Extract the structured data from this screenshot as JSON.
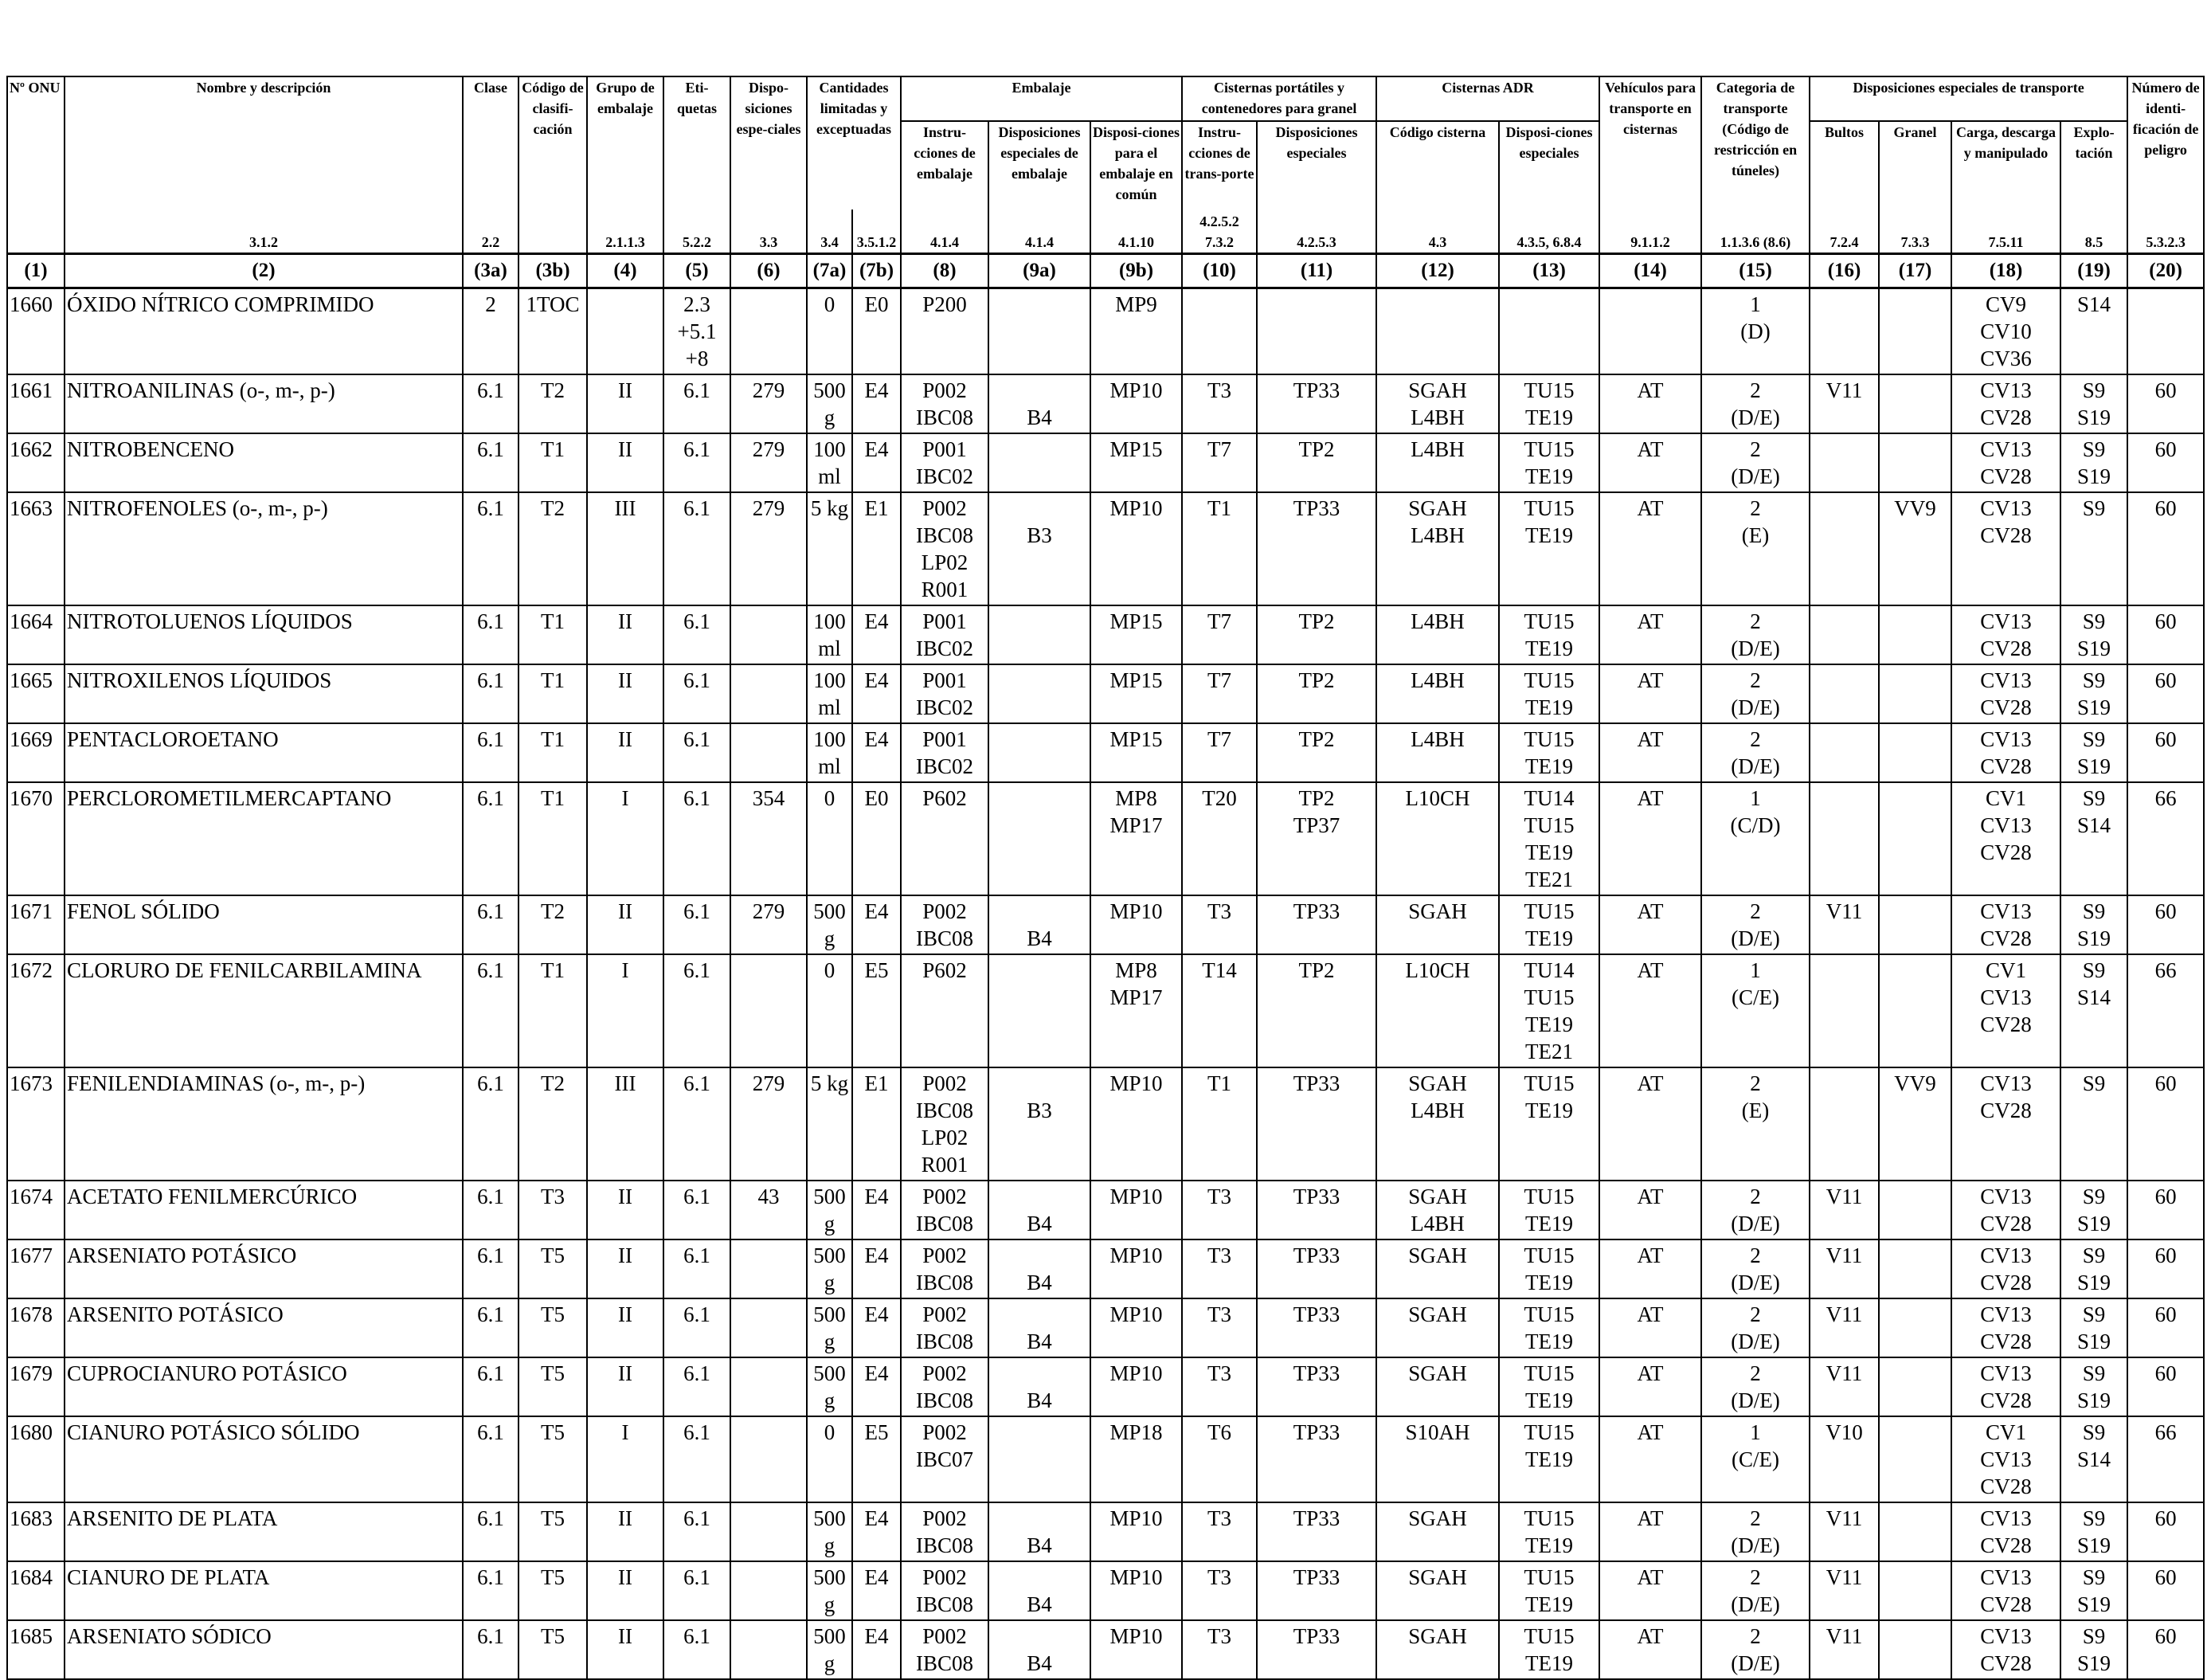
{
  "header": {
    "row1": {
      "onu": "Nº ONU",
      "name": "Nombre y descripción",
      "clase": "Clase",
      "codigo": "Código de clasifi-cación",
      "grupo": "Grupo de embalaje",
      "etiquetas": "Eti-quetas",
      "disposiciones": "Dispo-siciones espe-ciales",
      "cantidades": "Cantidades limitadas y exceptuadas",
      "embalaje": "Embalaje",
      "cisternas_portatiles": "Cisternas portátiles y contenedores para granel",
      "cisternas_adr": "Cisternas ADR",
      "vehiculos": "Vehículos para transporte en cisternas",
      "categoria": "Categoria de transporte (Código de restricción en túneles)",
      "disp_transporte": "Disposiciones especiales de transporte",
      "numero": "Número de identi-ficación de peligro"
    },
    "row2": {
      "emb_instr": "Instru-cciones de embalaje",
      "emb_disp": "Disposiciones especiales de embalaje",
      "emb_comun": "Disposi-ciones para el embalaje en común",
      "cp_instr": "Instru-cciones de trans-porte",
      "cp_disp": "Disposiciones especiales",
      "adr_codigo": "Código cisterna",
      "adr_disp": "Disposi-ciones especiales",
      "bultos": "Bultos",
      "granel": "Granel",
      "carga": "Carga, descarga y manipulado",
      "explotacion": "Explo-tación"
    },
    "refs": [
      "",
      "3.1.2",
      "2.2",
      "",
      "2.1.1.3",
      "5.2.2",
      "3.3",
      "3.4",
      "3.5.1.2",
      "4.1.4",
      "4.1.4",
      "4.1.10",
      "4.2.5.2 7.3.2",
      "4.2.5.3",
      "4.3",
      "4.3.5, 6.8.4",
      "9.1.1.2",
      "1.1.3.6 (8.6)",
      "7.2.4",
      "7.3.3",
      "7.5.11",
      "8.5",
      "5.3.2.3"
    ],
    "numbers": [
      "(1)",
      "(2)",
      "(3a)",
      "(3b)",
      "(4)",
      "(5)",
      "(6)",
      "(7a)",
      "(7b)",
      "(8)",
      "(9a)",
      "(9b)",
      "(10)",
      "(11)",
      "(12)",
      "(13)",
      "(14)",
      "(15)",
      "(16)",
      "(17)",
      "(18)",
      "(19)",
      "(20)"
    ]
  },
  "rows": [
    {
      "c": [
        "1660",
        "ÓXIDO NÍTRICO COMPRIMIDO",
        "2",
        "1TOC",
        "",
        "2.3\n+5.1\n+8",
        "",
        "0",
        "E0",
        "P200",
        "",
        "MP9",
        "",
        "",
        "",
        "",
        "",
        "1\n(D)",
        "",
        "",
        "CV9\nCV10\nCV36",
        "S14",
        ""
      ]
    },
    {
      "c": [
        "1661",
        "NITROANILINAS (o-, m-, p-)",
        "6.1",
        "T2",
        "II",
        "6.1",
        "279",
        "500\ng",
        "E4",
        "P002\nIBC08",
        "\nB4",
        "MP10",
        "T3",
        "TP33",
        "SGAH\nL4BH",
        "TU15\nTE19",
        "AT",
        "2\n(D/E)",
        "V11",
        "",
        "CV13\nCV28",
        "S9\nS19",
        "60"
      ]
    },
    {
      "c": [
        "1662",
        "NITROBENCENO",
        "6.1",
        "T1",
        "II",
        "6.1",
        "279",
        "100\nml",
        "E4",
        "P001\nIBC02",
        "",
        "MP15",
        "T7",
        "TP2",
        "L4BH",
        "TU15\nTE19",
        "AT",
        "2\n(D/E)",
        "",
        "",
        "CV13\nCV28",
        "S9\nS19",
        "60"
      ]
    },
    {
      "c": [
        "1663",
        "NITROFENOLES (o-, m-, p-)",
        "6.1",
        "T2",
        "III",
        "6.1",
        "279",
        "5 kg",
        "E1",
        "P002\nIBC08\nLP02\nR001",
        "\nB3",
        "MP10",
        "T1",
        "TP33",
        "SGAH\nL4BH",
        "TU15\nTE19",
        "AT",
        "2\n(E)",
        "",
        "VV9",
        "CV13\nCV28",
        "S9",
        "60"
      ]
    },
    {
      "c": [
        "1664",
        "NITROTOLUENOS LÍQUIDOS",
        "6.1",
        "T1",
        "II",
        "6.1",
        "",
        "100\nml",
        "E4",
        "P001\nIBC02",
        "",
        "MP15",
        "T7",
        "TP2",
        "L4BH",
        "TU15\nTE19",
        "AT",
        "2\n(D/E)",
        "",
        "",
        "CV13\nCV28",
        "S9\nS19",
        "60"
      ]
    },
    {
      "c": [
        "1665",
        "NITROXILENOS LÍQUIDOS",
        "6.1",
        "T1",
        "II",
        "6.1",
        "",
        "100\nml",
        "E4",
        "P001\nIBC02",
        "",
        "MP15",
        "T7",
        "TP2",
        "L4BH",
        "TU15\nTE19",
        "AT",
        "2\n(D/E)",
        "",
        "",
        "CV13\nCV28",
        "S9\nS19",
        "60"
      ]
    },
    {
      "c": [
        "1669",
        "PENTACLOROETANO",
        "6.1",
        "T1",
        "II",
        "6.1",
        "",
        "100\nml",
        "E4",
        "P001\nIBC02",
        "",
        "MP15",
        "T7",
        "TP2",
        "L4BH",
        "TU15\nTE19",
        "AT",
        "2\n(D/E)",
        "",
        "",
        "CV13\nCV28",
        "S9\nS19",
        "60"
      ]
    },
    {
      "c": [
        "1670",
        "PERCLOROMETILMERCAPTANO",
        "6.1",
        "T1",
        "I",
        "6.1",
        "354",
        "0",
        "E0",
        "P602",
        "",
        "MP8\nMP17",
        "T20",
        "TP2\nTP37",
        "L10CH",
        "TU14\nTU15\nTE19\nTE21",
        "AT",
        "1\n(C/D)",
        "",
        "",
        "CV1\nCV13\nCV28",
        "S9\nS14",
        "66"
      ]
    },
    {
      "c": [
        "1671",
        "FENOL SÓLIDO",
        "6.1",
        "T2",
        "II",
        "6.1",
        "279",
        "500\ng",
        "E4",
        "P002\nIBC08",
        "\nB4",
        "MP10",
        "T3",
        "TP33",
        "SGAH",
        "TU15\nTE19",
        "AT",
        "2\n(D/E)",
        "V11",
        "",
        "CV13\nCV28",
        "S9\nS19",
        "60"
      ]
    },
    {
      "c": [
        "1672",
        "CLORURO DE FENILCARBILAMINA",
        "6.1",
        "T1",
        "I",
        "6.1",
        "",
        "0",
        "E5",
        "P602",
        "",
        "MP8\nMP17",
        "T14",
        "TP2",
        "L10CH",
        "TU14\nTU15\nTE19\nTE21",
        "AT",
        "1\n(C/E)",
        "",
        "",
        "CV1\nCV13\nCV28",
        "S9\nS14",
        "66"
      ]
    },
    {
      "c": [
        "1673",
        "FENILENDIAMINAS (o-, m-, p-)",
        "6.1",
        "T2",
        "III",
        "6.1",
        "279",
        "5 kg",
        "E1",
        "P002\nIBC08\nLP02\nR001",
        "\nB3",
        "MP10",
        "T1",
        "TP33",
        "SGAH\nL4BH",
        "TU15\nTE19",
        "AT",
        "2\n(E)",
        "",
        "VV9",
        "CV13\nCV28",
        "S9",
        "60"
      ]
    },
    {
      "c": [
        "1674",
        "ACETATO FENILMERCÚRICO",
        "6.1",
        "T3",
        "II",
        "6.1",
        "43",
        "500\ng",
        "E4",
        "P002\nIBC08",
        "\nB4",
        "MP10",
        "T3",
        "TP33",
        "SGAH\nL4BH",
        "TU15\nTE19",
        "AT",
        "2\n(D/E)",
        "V11",
        "",
        "CV13\nCV28",
        "S9\nS19",
        "60"
      ]
    },
    {
      "c": [
        "1677",
        "ARSENIATO POTÁSICO",
        "6.1",
        "T5",
        "II",
        "6.1",
        "",
        "500\ng",
        "E4",
        "P002\nIBC08",
        "\nB4",
        "MP10",
        "T3",
        "TP33",
        "SGAH",
        "TU15\nTE19",
        "AT",
        "2\n(D/E)",
        "V11",
        "",
        "CV13\nCV28",
        "S9\nS19",
        "60"
      ]
    },
    {
      "c": [
        "1678",
        "ARSENITO POTÁSICO",
        "6.1",
        "T5",
        "II",
        "6.1",
        "",
        "500\ng",
        "E4",
        "P002\nIBC08",
        "\nB4",
        "MP10",
        "T3",
        "TP33",
        "SGAH",
        "TU15\nTE19",
        "AT",
        "2\n(D/E)",
        "V11",
        "",
        "CV13\nCV28",
        "S9\nS19",
        "60"
      ]
    },
    {
      "c": [
        "1679",
        "CUPROCIANURO POTÁSICO",
        "6.1",
        "T5",
        "II",
        "6.1",
        "",
        "500\ng",
        "E4",
        "P002\nIBC08",
        "\nB4",
        "MP10",
        "T3",
        "TP33",
        "SGAH",
        "TU15\nTE19",
        "AT",
        "2\n(D/E)",
        "V11",
        "",
        "CV13\nCV28",
        "S9\nS19",
        "60"
      ]
    },
    {
      "c": [
        "1680",
        "CIANURO POTÁSICO SÓLIDO",
        "6.1",
        "T5",
        "I",
        "6.1",
        "",
        "0",
        "E5",
        "P002\nIBC07",
        "",
        "MP18",
        "T6",
        "TP33",
        "S10AH",
        "TU15\nTE19",
        "AT",
        "1\n(C/E)",
        "V10",
        "",
        "CV1\nCV13\nCV28",
        "S9\nS14",
        "66"
      ]
    },
    {
      "c": [
        "1683",
        "ARSENITO DE PLATA",
        "6.1",
        "T5",
        "II",
        "6.1",
        "",
        "500\ng",
        "E4",
        "P002\nIBC08",
        "\nB4",
        "MP10",
        "T3",
        "TP33",
        "SGAH",
        "TU15\nTE19",
        "AT",
        "2\n(D/E)",
        "V11",
        "",
        "CV13\nCV28",
        "S9\nS19",
        "60"
      ]
    },
    {
      "c": [
        "1684",
        "CIANURO DE PLATA",
        "6.1",
        "T5",
        "II",
        "6.1",
        "",
        "500\ng",
        "E4",
        "P002\nIBC08",
        "\nB4",
        "MP10",
        "T3",
        "TP33",
        "SGAH",
        "TU15\nTE19",
        "AT",
        "2\n(D/E)",
        "V11",
        "",
        "CV13\nCV28",
        "S9\nS19",
        "60"
      ]
    },
    {
      "c": [
        "1685",
        "ARSENIATO SÓDICO",
        "6.1",
        "T5",
        "II",
        "6.1",
        "",
        "500\ng",
        "E4",
        "P002\nIBC08",
        "\nB4",
        "MP10",
        "T3",
        "TP33",
        "SGAH",
        "TU15\nTE19",
        "AT",
        "2\n(D/E)",
        "V11",
        "",
        "CV13\nCV28",
        "S9\nS19",
        "60"
      ]
    }
  ]
}
